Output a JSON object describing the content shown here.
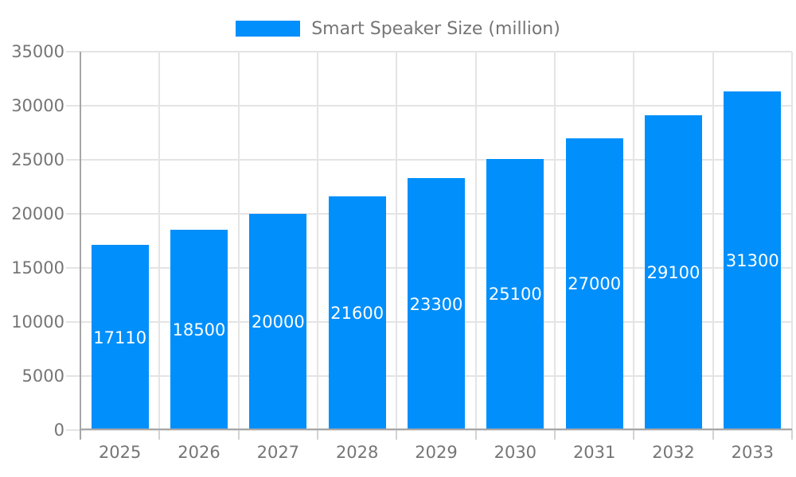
{
  "chart_data": {
    "type": "bar",
    "title": "",
    "categories": [
      "2025",
      "2026",
      "2027",
      "2028",
      "2029",
      "2030",
      "2031",
      "2032",
      "2033"
    ],
    "series": [
      {
        "name": "Smart Speaker Size (million)",
        "values": [
          17110,
          18500,
          20000,
          21600,
          23300,
          25100,
          27000,
          29100,
          31300
        ]
      }
    ],
    "xlabel": "",
    "ylabel": "",
    "ylim": [
      0,
      35000
    ],
    "yticks": [
      0,
      5000,
      10000,
      15000,
      20000,
      25000,
      30000,
      35000
    ],
    "grid": true,
    "legend_position": "top",
    "value_label_position": "inside-center"
  },
  "style": {
    "bar_color": "#008FFB",
    "value_label_color": "#FFFFFF",
    "axis_label_color": "#757575",
    "grid_color": "#E4E4E4",
    "axis_line_color": "#A6A6A6",
    "tick_color": "#D2D2D2",
    "background": "#FFFFFF"
  }
}
